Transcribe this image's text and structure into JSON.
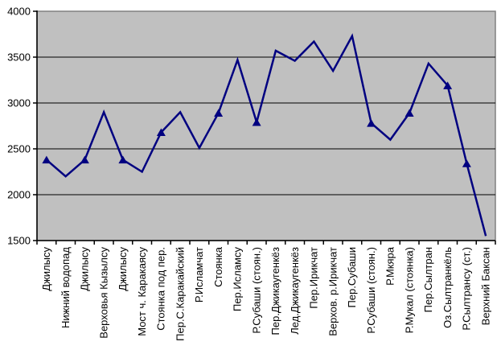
{
  "chart_data": {
    "type": "line",
    "title": "",
    "xlabel": "",
    "ylabel": "",
    "series_name": "elevation-profile",
    "categories": [
      "Джилысу",
      "Нижний водопад",
      "Джилысу",
      "Верховья Кызылсу",
      "Джилысу",
      "Мост ч. Каракаясу",
      "Стоянка под пер.",
      "Пер.С.Каракайский",
      "Р.Исламчат",
      "Стоянка",
      "Пер.Исламсу",
      "Р.Субаши (стоян.)",
      "Пер.Джикаугенкёз",
      "Лед.Джикаугенкёз",
      "Пер.Ирикчат",
      "Верхов. р.Ирикчат",
      "Пер.Субаши",
      "Р.Субаши (стоян.)",
      "Р.Мкяра",
      "Р.Мукал (стоянка)",
      "Пер.Сылтран",
      "Оз.Сылтранкёль",
      "Р.Сылтрансу (ст.)",
      "Верхний Баксан"
    ],
    "values": [
      2380,
      2200,
      2380,
      2900,
      2380,
      2250,
      2680,
      2900,
      2510,
      2890,
      3470,
      2790,
      3570,
      3460,
      3670,
      3350,
      3730,
      2780,
      2600,
      2890,
      3430,
      3190,
      2340,
      1550
    ],
    "marker_point_indices": [
      0,
      2,
      4,
      6,
      9,
      11,
      17,
      19,
      21,
      22
    ],
    "marker_shape": "triangle",
    "ylim": [
      1500,
      4000
    ],
    "y_tick_step": 500,
    "y_tick_labels": [
      "4000",
      "3500",
      "3000",
      "2500",
      "2000",
      "1500"
    ],
    "grid": true,
    "legend": false,
    "x_labels_rotation_degrees": -90,
    "colors": {
      "line": "#000080",
      "marker": "#000080",
      "plot_background": "#C0C0C0",
      "plot_border": "#808080",
      "gridline": "#000000",
      "axis": "#000000",
      "label_text": "#000000",
      "page_background": "#FFFFFF"
    }
  }
}
